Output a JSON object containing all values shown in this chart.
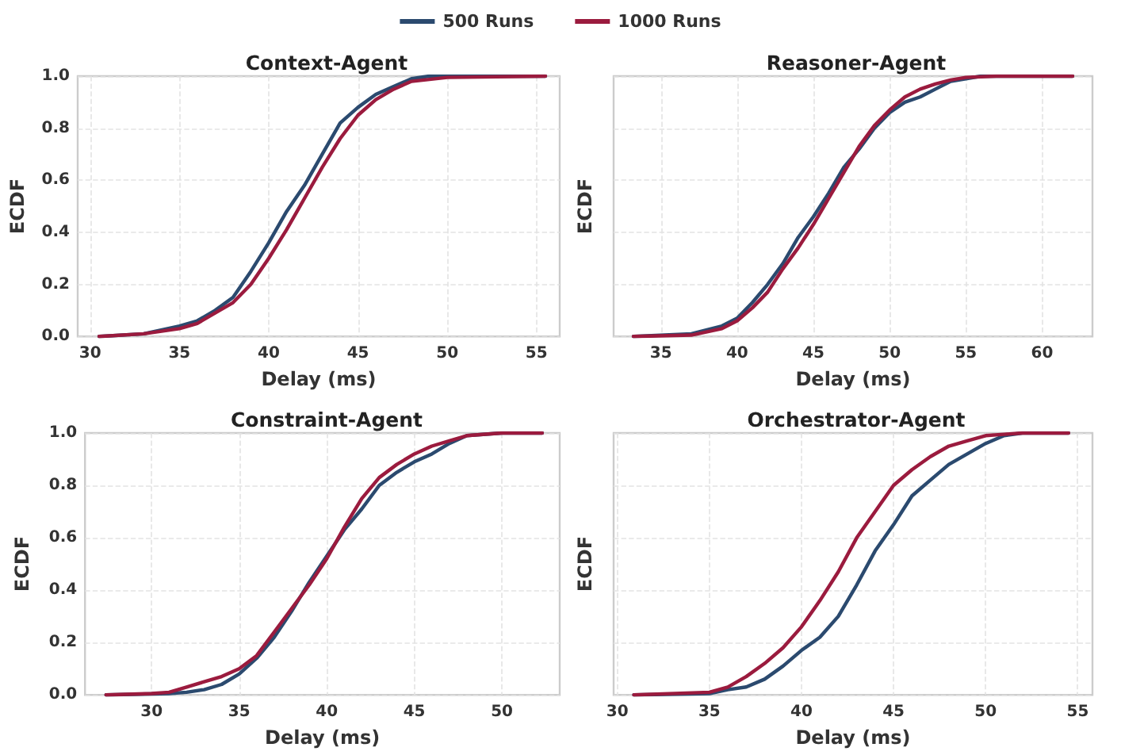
{
  "chart_data": [
    {
      "type": "line",
      "title": "Context-Agent",
      "xlabel": "Delay (ms)",
      "ylabel": "ECDF",
      "xlim": [
        29.3,
        56.3
      ],
      "ylim": [
        0,
        1
      ],
      "xticks": [
        30,
        35,
        40,
        45,
        50,
        55
      ],
      "yticks": [
        {
          "value": 0,
          "label": "0.0"
        },
        {
          "value": 0.2,
          "label": "0.2"
        },
        {
          "value": 0.4,
          "label": "0.4"
        },
        {
          "value": 0.6,
          "label": "0.6"
        },
        {
          "value": 0.8,
          "label": "0.8"
        },
        {
          "value": 1,
          "label": "1.0"
        }
      ],
      "grid": true,
      "legend": "top",
      "marker": "none",
      "line_style": "solid",
      "series": [
        {
          "name": "500 Runs",
          "color": "#2b4a6f",
          "x": [
            30.5,
            33,
            35,
            36,
            37,
            38,
            39,
            40,
            41,
            42,
            43,
            44,
            45,
            46,
            47,
            48,
            49,
            55.5
          ],
          "values": [
            0,
            0.01,
            0.04,
            0.06,
            0.1,
            0.15,
            0.25,
            0.36,
            0.48,
            0.58,
            0.7,
            0.82,
            0.88,
            0.93,
            0.96,
            0.99,
            1,
            1
          ]
        },
        {
          "name": "1000 Runs",
          "color": "#9b1b3e",
          "x": [
            30.5,
            33,
            35,
            36,
            37,
            38,
            39,
            40,
            41,
            42,
            43,
            44,
            45,
            46,
            47,
            48,
            50,
            55.5
          ],
          "values": [
            0,
            0.01,
            0.03,
            0.05,
            0.09,
            0.13,
            0.2,
            0.3,
            0.41,
            0.53,
            0.65,
            0.76,
            0.85,
            0.91,
            0.95,
            0.98,
            0.995,
            1
          ]
        }
      ]
    },
    {
      "type": "line",
      "title": "Reasoner-Agent",
      "xlabel": "Delay (ms)",
      "ylabel": "ECDF",
      "xlim": [
        31.9,
        63.3
      ],
      "ylim": [
        0,
        1
      ],
      "xticks": [
        35,
        40,
        45,
        50,
        55,
        60
      ],
      "yticks": [
        0,
        0.2,
        0.4,
        0.6,
        0.8,
        1
      ],
      "tick_labels": "x",
      "grid": true,
      "marker": "none",
      "line_style": "solid",
      "series": [
        {
          "color": "#2b4a6f",
          "x": [
            33.2,
            37,
            39,
            40,
            41,
            42,
            43,
            44,
            45,
            46,
            47,
            48,
            49,
            50,
            51,
            52,
            53,
            54,
            55,
            56,
            62
          ],
          "values": [
            0,
            0.01,
            0.04,
            0.07,
            0.13,
            0.2,
            0.28,
            0.38,
            0.46,
            0.55,
            0.65,
            0.72,
            0.8,
            0.86,
            0.9,
            0.92,
            0.95,
            0.98,
            0.99,
            1,
            1
          ]
        },
        {
          "color": "#9b1b3e",
          "x": [
            33.2,
            37,
            39,
            40,
            41,
            42,
            43,
            44,
            45,
            46,
            47,
            48,
            49,
            50,
            51,
            52,
            53,
            54,
            55,
            57,
            62
          ],
          "values": [
            0,
            0.005,
            0.03,
            0.06,
            0.11,
            0.17,
            0.26,
            0.34,
            0.43,
            0.53,
            0.63,
            0.73,
            0.81,
            0.87,
            0.92,
            0.95,
            0.97,
            0.985,
            0.995,
            1,
            1
          ]
        }
      ]
    },
    {
      "type": "line",
      "title": "Constraint-Agent",
      "xlabel": "Delay (ms)",
      "ylabel": "ECDF",
      "xlim": [
        26.2,
        53.3
      ],
      "ylim": [
        0,
        1
      ],
      "xticks": [
        30,
        35,
        40,
        45,
        50
      ],
      "yticks": [
        {
          "value": 0,
          "label": "0.0"
        },
        {
          "value": 0.2,
          "label": "0.2"
        },
        {
          "value": 0.4,
          "label": "0.4"
        },
        {
          "value": 0.6,
          "label": "0.6"
        },
        {
          "value": 0.8,
          "label": "0.8"
        },
        {
          "value": 1,
          "label": "1.0"
        }
      ],
      "grid": true,
      "marker": "none",
      "line_style": "solid",
      "series": [
        {
          "color": "#2b4a6f",
          "x": [
            27.4,
            31,
            32,
            33,
            34,
            35,
            36,
            37,
            38,
            39,
            40,
            41,
            42,
            43,
            44,
            45,
            46,
            47,
            48,
            50,
            52.3
          ],
          "values": [
            0,
            0.005,
            0.01,
            0.02,
            0.04,
            0.08,
            0.14,
            0.22,
            0.32,
            0.43,
            0.53,
            0.63,
            0.71,
            0.8,
            0.85,
            0.89,
            0.92,
            0.96,
            0.99,
            1,
            1
          ]
        },
        {
          "color": "#9b1b3e",
          "x": [
            27.4,
            30,
            31,
            32,
            33,
            34,
            35,
            36,
            37,
            38,
            39,
            40,
            41,
            42,
            43,
            44,
            45,
            46,
            47,
            48,
            50,
            52.3
          ],
          "values": [
            0,
            0.005,
            0.01,
            0.03,
            0.05,
            0.07,
            0.1,
            0.15,
            0.24,
            0.33,
            0.42,
            0.52,
            0.64,
            0.75,
            0.83,
            0.88,
            0.92,
            0.95,
            0.97,
            0.99,
            1,
            1
          ]
        }
      ]
    },
    {
      "type": "line",
      "title": "Orchestrator-Agent",
      "xlabel": "Delay (ms)",
      "ylabel": "ECDF",
      "xlim": [
        29.8,
        55.8
      ],
      "ylim": [
        0,
        1
      ],
      "xticks": [
        30,
        35,
        40,
        45,
        50,
        55
      ],
      "yticks": [
        0,
        0.2,
        0.4,
        0.6,
        0.8,
        1
      ],
      "tick_labels": "x",
      "grid": true,
      "marker": "none",
      "line_style": "solid",
      "series": [
        {
          "color": "#2b4a6f",
          "x": [
            30.9,
            35,
            36,
            37,
            38,
            39,
            40,
            41,
            42,
            43,
            44,
            45,
            46,
            47,
            48,
            49,
            50,
            51,
            52,
            54.5
          ],
          "values": [
            0,
            0.005,
            0.02,
            0.03,
            0.06,
            0.11,
            0.17,
            0.22,
            0.3,
            0.42,
            0.55,
            0.65,
            0.76,
            0.82,
            0.88,
            0.92,
            0.96,
            0.99,
            1,
            1
          ]
        },
        {
          "color": "#9b1b3e",
          "x": [
            30.9,
            35,
            36,
            37,
            38,
            39,
            40,
            41,
            42,
            43,
            44,
            45,
            46,
            47,
            48,
            49,
            50,
            51,
            52,
            54.5
          ],
          "values": [
            0,
            0.01,
            0.03,
            0.07,
            0.12,
            0.18,
            0.26,
            0.36,
            0.47,
            0.6,
            0.7,
            0.8,
            0.86,
            0.91,
            0.95,
            0.97,
            0.99,
            0.995,
            1,
            1
          ]
        }
      ]
    }
  ]
}
